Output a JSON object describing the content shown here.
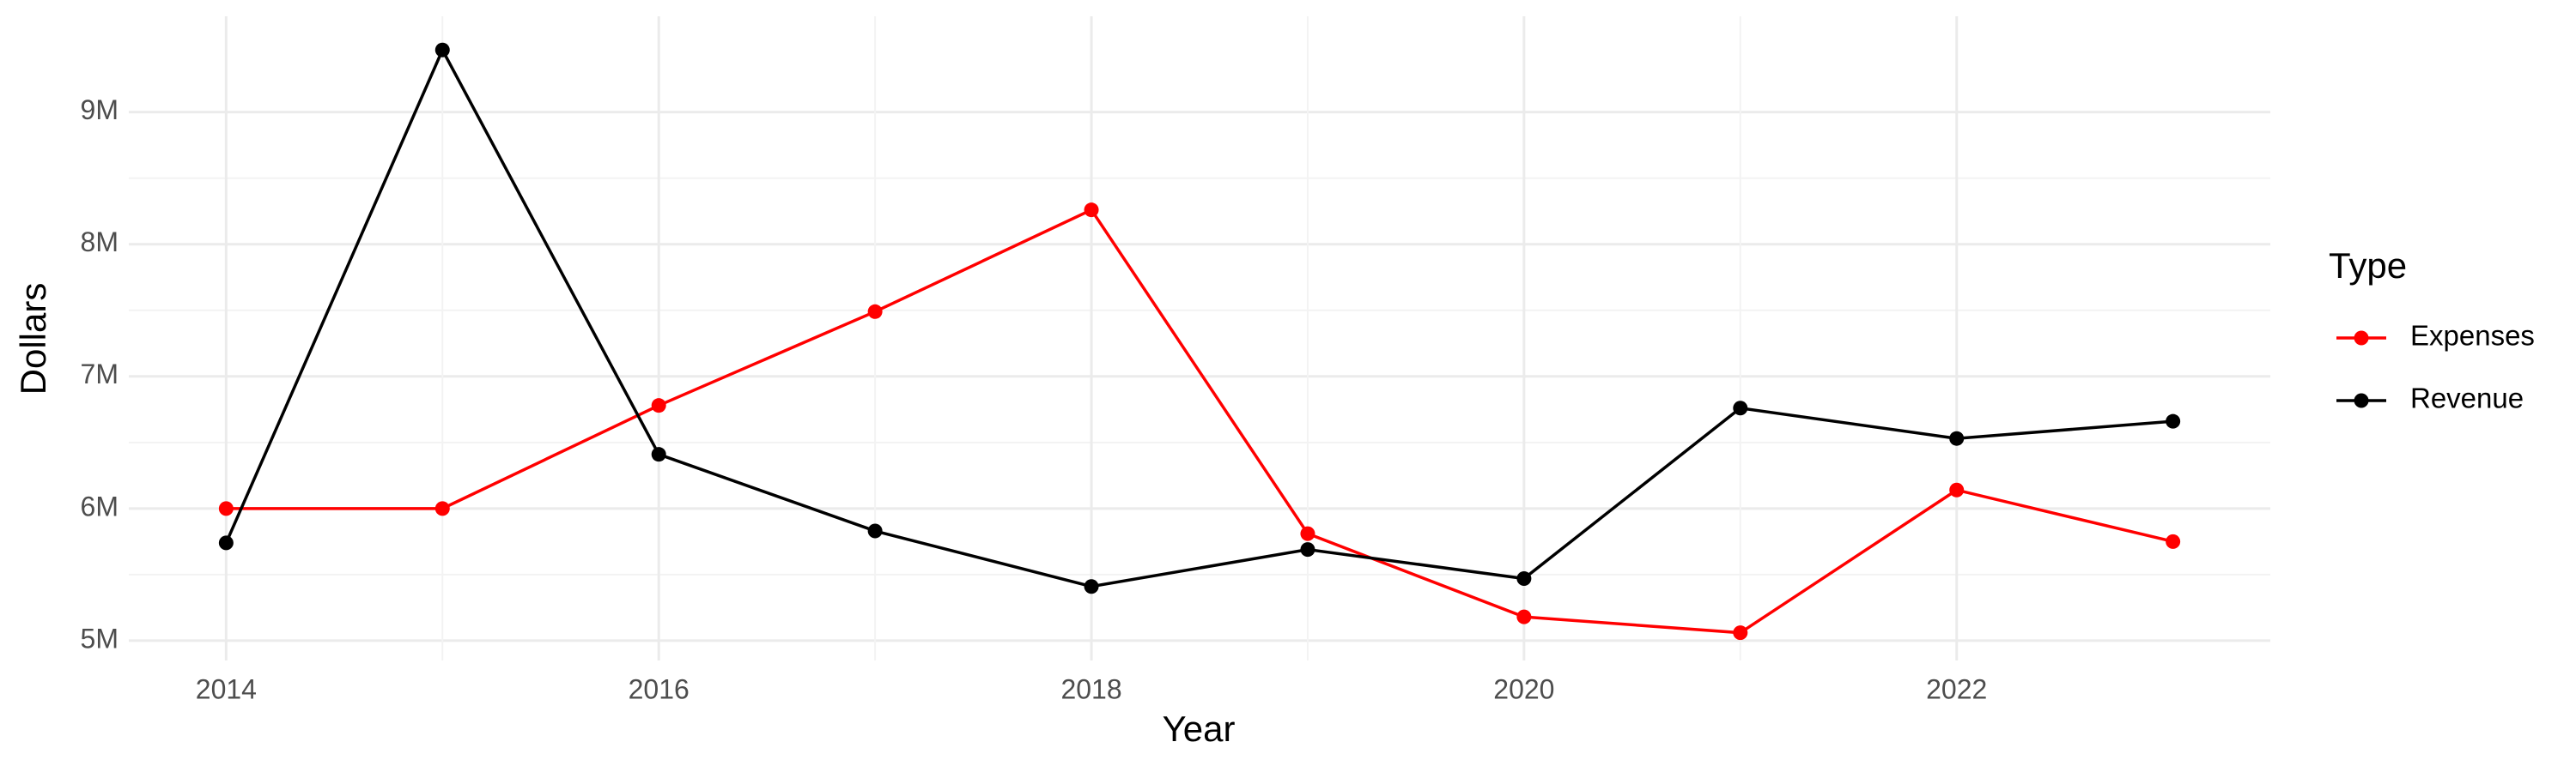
{
  "chart_data": {
    "type": "line",
    "x_label": "Year",
    "y_label": "Dollars",
    "x": [
      2014,
      2015,
      2016,
      2017,
      2018,
      2019,
      2020,
      2021,
      2022,
      2023
    ],
    "series": [
      {
        "name": "Expenses",
        "color": "#ff0000",
        "values": [
          6000000,
          6000000,
          6780000,
          7490000,
          8260000,
          5810000,
          5180000,
          5060000,
          6140000,
          5750000
        ]
      },
      {
        "name": "Revenue",
        "color": "#000000",
        "values": [
          5740000,
          9470000,
          6410000,
          5830000,
          5410000,
          5690000,
          5470000,
          6760000,
          6530000,
          6660000
        ]
      }
    ],
    "xlim": [
      2013.55,
      2023.45
    ],
    "xticks": [
      2014,
      2016,
      2018,
      2020,
      2022
    ],
    "ylim": [
      4850000,
      9725000
    ],
    "yticks": [
      {
        "value": 5000000,
        "label": "5M"
      },
      {
        "value": 6000000,
        "label": "6M"
      },
      {
        "value": 7000000,
        "label": "7M"
      },
      {
        "value": 8000000,
        "label": "8M"
      },
      {
        "value": 9000000,
        "label": "9M"
      }
    ],
    "grid": true,
    "legend_title": "Type",
    "legend_position": "right"
  }
}
